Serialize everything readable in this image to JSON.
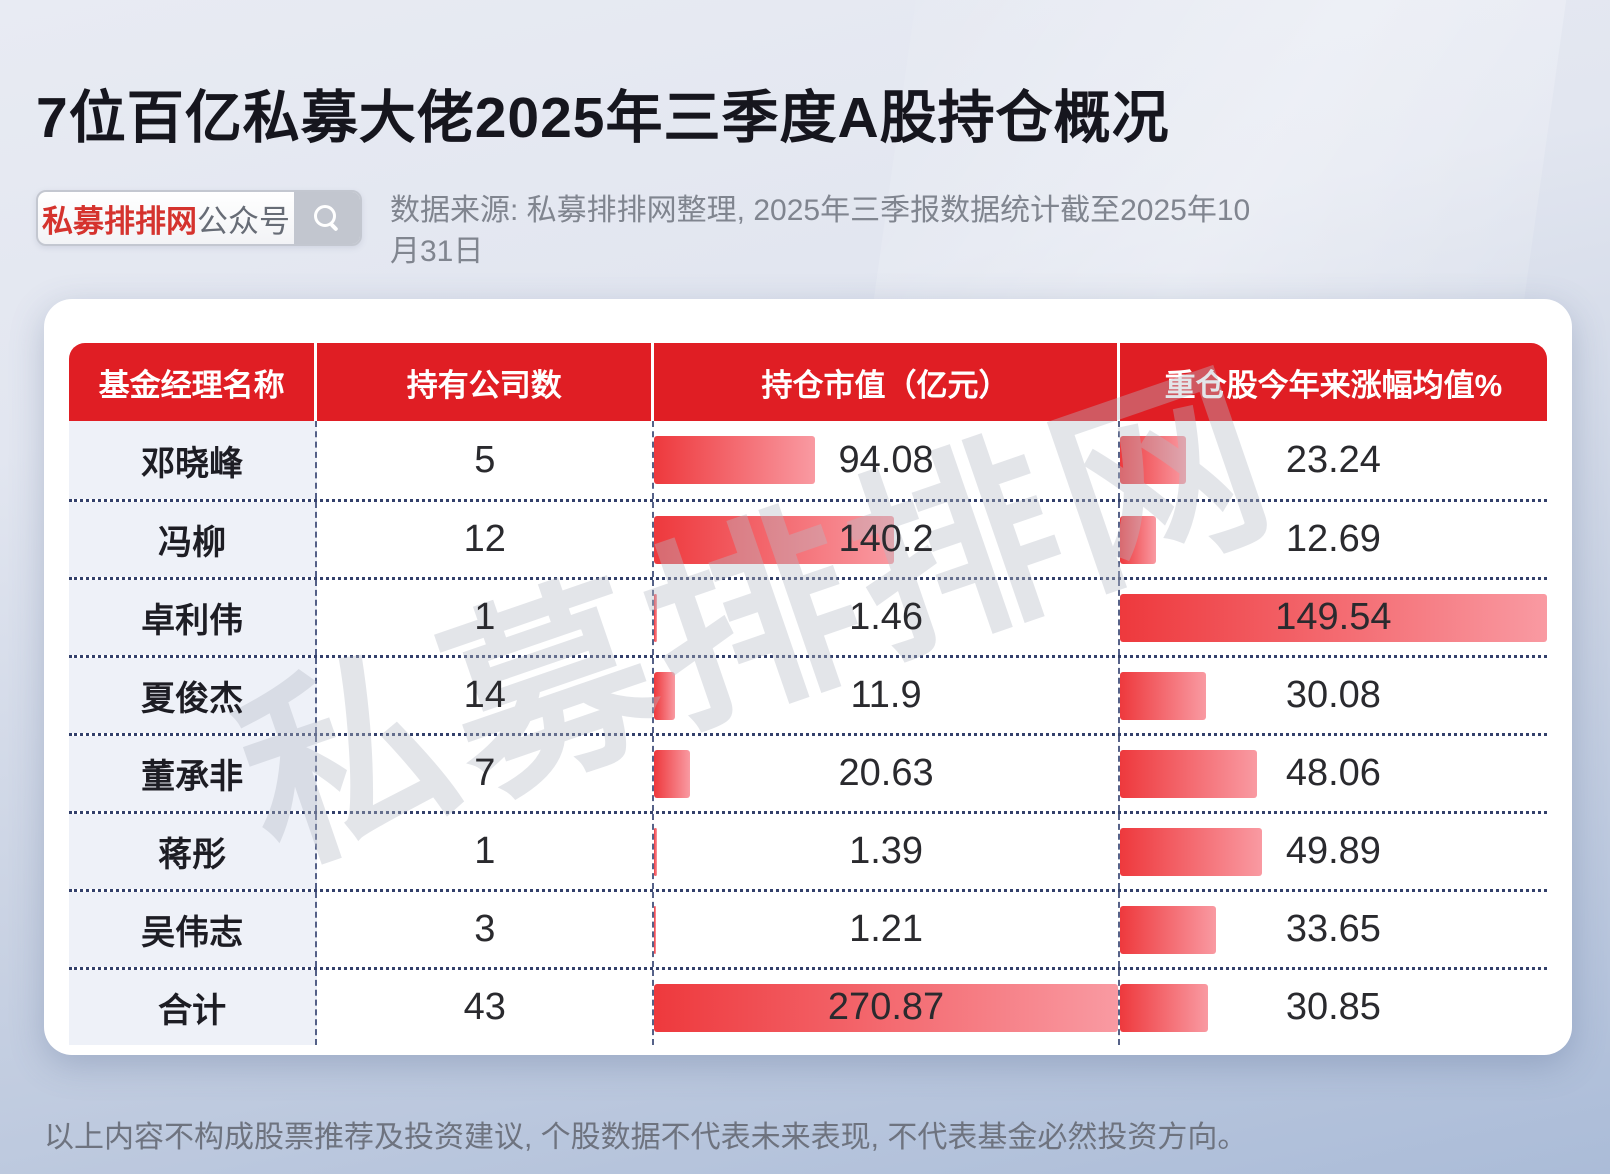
{
  "title": "7位百亿私募大佬2025年三季度A股持仓概况",
  "search": {
    "brand": "私募排排网",
    "suffix": "公众号",
    "icon": "search-icon"
  },
  "source_note": "数据来源: 私募排排网整理, 2025年三季报数据统计截至2025年10月31日",
  "watermark": "私募排排网",
  "disclaimer": "以上内容不构成股票推荐及投资建议, 个股数据不代表未来表现, 不代表基金必然投资方向。",
  "colors": {
    "header_red": "#e01e24",
    "bar_start": "#ee393d",
    "bar_end": "#f99aa2",
    "line_navy": "#33406b"
  },
  "chart_data": {
    "type": "table",
    "columns": [
      "基金经理名称",
      "持有公司数",
      "持仓市值（亿元）",
      "重仓股今年来涨幅均值%"
    ],
    "rows": [
      {
        "name": "邓晓峰",
        "companies": 5,
        "value": 94.08,
        "gain": 23.24
      },
      {
        "name": "冯柳",
        "companies": 12,
        "value": 140.2,
        "gain": 12.69
      },
      {
        "name": "卓利伟",
        "companies": 1,
        "value": 1.46,
        "gain": 149.54
      },
      {
        "name": "夏俊杰",
        "companies": 14,
        "value": 11.9,
        "gain": 30.08
      },
      {
        "name": "董承非",
        "companies": 7,
        "value": 20.63,
        "gain": 48.06
      },
      {
        "name": "蒋彤",
        "companies": 1,
        "value": 1.39,
        "gain": 49.89
      },
      {
        "name": "吴伟志",
        "companies": 3,
        "value": 1.21,
        "gain": 33.65
      },
      {
        "name": "合计",
        "companies": 43,
        "value": 270.87,
        "gain": 30.85
      }
    ],
    "value_bar_max": 270.87,
    "gain_bar_max": 149.54,
    "bars_note": "bar widths proportional to value within column, darker red at left fading to pink"
  }
}
